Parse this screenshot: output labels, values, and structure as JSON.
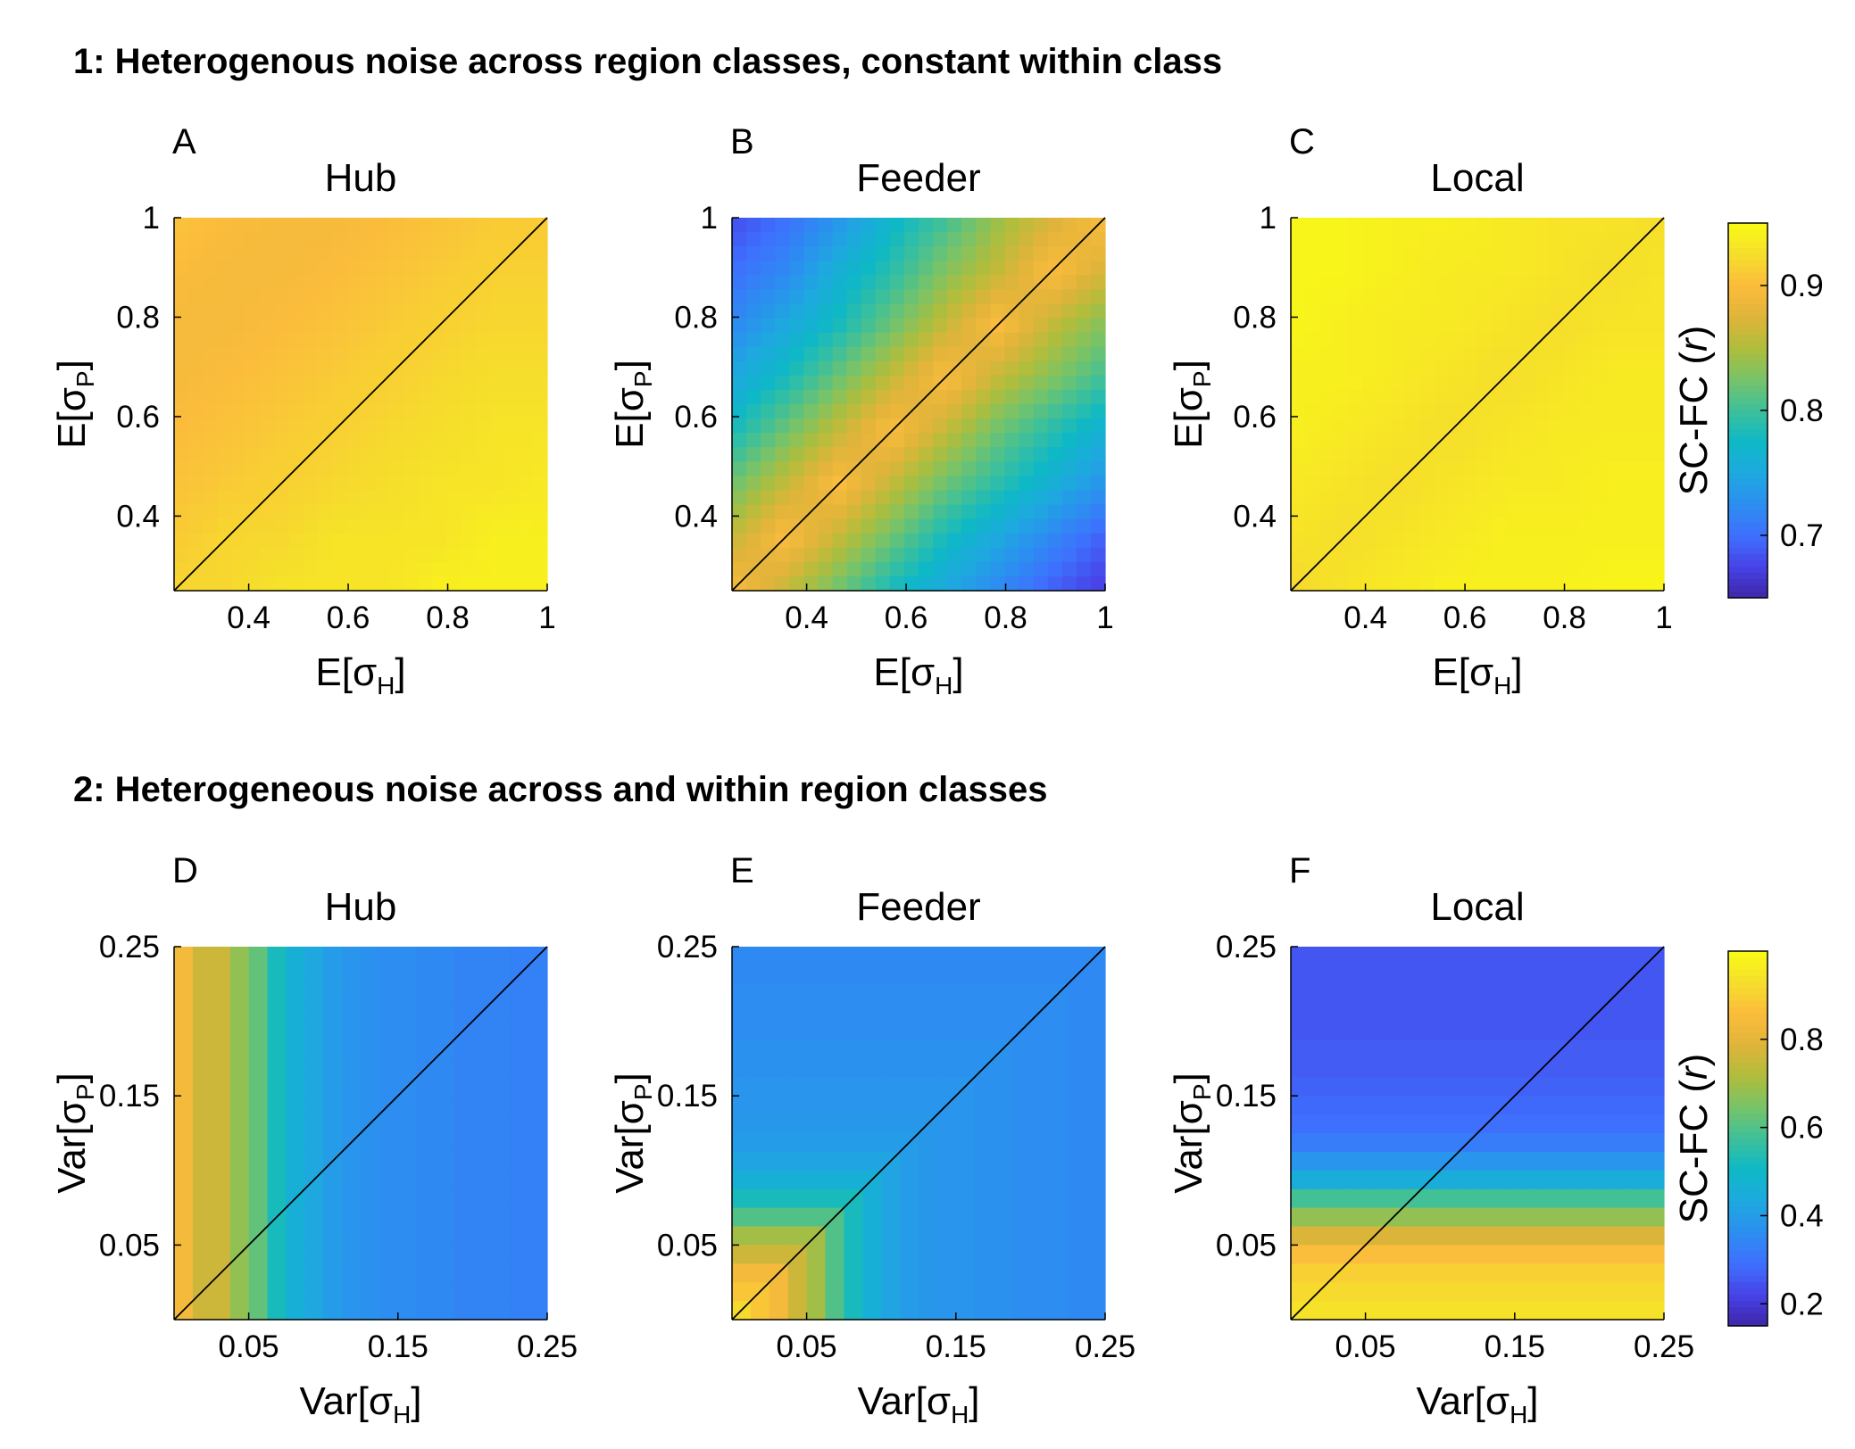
{
  "sections": [
    {
      "title": "1: Heterogenous noise across region classes, constant within class"
    },
    {
      "title": "2: Heterogeneous noise across and within region classes"
    }
  ],
  "labels": {
    "row1_x": {
      "main": "E[",
      "sym": "σ",
      "sub": "H",
      "close": "]"
    },
    "row1_y": {
      "main": "E[",
      "sym": "σ",
      "sub": "P",
      "close": "]"
    },
    "row2_x": {
      "main": "Var[",
      "sym": "σ",
      "sub": "H",
      "close": "]"
    },
    "row2_y": {
      "main": "Var[",
      "sym": "σ",
      "sub": "P",
      "close": "]"
    },
    "cbar": {
      "main": "SC-FC (",
      "italic": "r",
      "close": ")"
    }
  },
  "colors": {
    "colormap": [
      "#3e26a8",
      "#4743e8",
      "#3e70fd",
      "#2c8ef0",
      "#1ea9df",
      "#0eb8c6",
      "#3ec09a",
      "#78c368",
      "#b0bd3c",
      "#e0b43a",
      "#fbbc3c",
      "#f6de2c",
      "#f9fb15"
    ],
    "diagonal": "#000000"
  },
  "chart_data": [
    {
      "type": "heatmap",
      "letter": "A",
      "title": "Hub",
      "row": 1,
      "x_range": [
        0.25,
        1
      ],
      "y_range": [
        0.25,
        1
      ],
      "x_ticks": [
        {
          "v": 0.4,
          "label": "0.4"
        },
        {
          "v": 0.6,
          "label": "0.6"
        },
        {
          "v": 0.8,
          "label": "0.8"
        },
        {
          "v": 1,
          "label": "1"
        }
      ],
      "y_ticks": [
        {
          "v": 0.4,
          "label": "0.4"
        },
        {
          "v": 0.6,
          "label": "0.6"
        },
        {
          "v": 0.8,
          "label": "0.8"
        },
        {
          "v": 1,
          "label": "1"
        }
      ],
      "diagonal": true,
      "color_range": [
        0.65,
        0.95
      ],
      "grid": [
        [
          0.92,
          0.92,
          0.93,
          0.93,
          0.93,
          0.94,
          0.94,
          0.94
        ],
        [
          0.91,
          0.92,
          0.92,
          0.93,
          0.93,
          0.93,
          0.94,
          0.94
        ],
        [
          0.905,
          0.91,
          0.915,
          0.92,
          0.925,
          0.93,
          0.93,
          0.935
        ],
        [
          0.9,
          0.905,
          0.91,
          0.915,
          0.92,
          0.925,
          0.93,
          0.93
        ],
        [
          0.895,
          0.9,
          0.905,
          0.91,
          0.915,
          0.92,
          0.925,
          0.925
        ],
        [
          0.895,
          0.895,
          0.9,
          0.905,
          0.91,
          0.915,
          0.92,
          0.92
        ],
        [
          0.9,
          0.895,
          0.895,
          0.9,
          0.905,
          0.91,
          0.915,
          0.915
        ],
        [
          0.905,
          0.9,
          0.895,
          0.895,
          0.9,
          0.905,
          0.91,
          0.91
        ]
      ]
    },
    {
      "type": "heatmap",
      "letter": "B",
      "title": "Feeder",
      "row": 1,
      "x_range": [
        0.25,
        1
      ],
      "y_range": [
        0.25,
        1
      ],
      "x_ticks": [
        {
          "v": 0.4,
          "label": "0.4"
        },
        {
          "v": 0.6,
          "label": "0.6"
        },
        {
          "v": 0.8,
          "label": "0.8"
        },
        {
          "v": 1,
          "label": "1"
        }
      ],
      "y_ticks": [
        {
          "v": 0.4,
          "label": "0.4"
        },
        {
          "v": 0.6,
          "label": "0.6"
        },
        {
          "v": 0.8,
          "label": "0.8"
        },
        {
          "v": 1,
          "label": "1"
        }
      ],
      "diagonal": true,
      "color_range": [
        0.65,
        0.95
      ],
      "grid": [
        [
          0.9,
          0.86,
          0.82,
          0.78,
          0.75,
          0.72,
          0.69,
          0.67
        ],
        [
          0.86,
          0.9,
          0.86,
          0.82,
          0.78,
          0.75,
          0.72,
          0.69
        ],
        [
          0.82,
          0.86,
          0.9,
          0.86,
          0.82,
          0.79,
          0.76,
          0.73
        ],
        [
          0.78,
          0.82,
          0.86,
          0.9,
          0.86,
          0.82,
          0.79,
          0.76
        ],
        [
          0.75,
          0.78,
          0.82,
          0.86,
          0.9,
          0.86,
          0.83,
          0.8
        ],
        [
          0.72,
          0.75,
          0.78,
          0.82,
          0.86,
          0.9,
          0.86,
          0.83
        ],
        [
          0.7,
          0.72,
          0.76,
          0.79,
          0.83,
          0.86,
          0.9,
          0.87
        ],
        [
          0.68,
          0.7,
          0.73,
          0.77,
          0.8,
          0.84,
          0.87,
          0.9
        ]
      ]
    },
    {
      "type": "heatmap",
      "letter": "C",
      "title": "Local",
      "row": 1,
      "x_range": [
        0.25,
        1
      ],
      "y_range": [
        0.25,
        1
      ],
      "x_ticks": [
        {
          "v": 0.4,
          "label": "0.4"
        },
        {
          "v": 0.6,
          "label": "0.6"
        },
        {
          "v": 0.8,
          "label": "0.8"
        },
        {
          "v": 1,
          "label": "1"
        }
      ],
      "y_ticks": [
        {
          "v": 0.4,
          "label": "0.4"
        },
        {
          "v": 0.6,
          "label": "0.6"
        },
        {
          "v": 0.8,
          "label": "0.8"
        },
        {
          "v": 1,
          "label": "1"
        }
      ],
      "diagonal": true,
      "color_range": [
        0.65,
        0.95
      ],
      "grid": [
        [
          0.92,
          0.93,
          0.935,
          0.94,
          0.94,
          0.94,
          0.945,
          0.945
        ],
        [
          0.93,
          0.925,
          0.93,
          0.935,
          0.94,
          0.94,
          0.94,
          0.94
        ],
        [
          0.935,
          0.93,
          0.925,
          0.93,
          0.935,
          0.935,
          0.94,
          0.94
        ],
        [
          0.94,
          0.935,
          0.93,
          0.925,
          0.93,
          0.935,
          0.935,
          0.935
        ],
        [
          0.94,
          0.94,
          0.935,
          0.93,
          0.925,
          0.93,
          0.935,
          0.935
        ],
        [
          0.945,
          0.94,
          0.935,
          0.935,
          0.93,
          0.925,
          0.93,
          0.93
        ],
        [
          0.945,
          0.945,
          0.94,
          0.935,
          0.935,
          0.93,
          0.925,
          0.93
        ],
        [
          0.945,
          0.945,
          0.94,
          0.94,
          0.935,
          0.93,
          0.93,
          0.925
        ]
      ]
    },
    {
      "type": "heatmap",
      "letter": "D",
      "title": "Hub",
      "row": 2,
      "x_range": [
        0,
        0.25
      ],
      "y_range": [
        0,
        0.25
      ],
      "x_ticks": [
        {
          "v": 0.05,
          "label": "0.05"
        },
        {
          "v": 0.15,
          "label": "0.15"
        },
        {
          "v": 0.25,
          "label": "0.25"
        }
      ],
      "y_ticks": [
        {
          "v": 0.05,
          "label": "0.05"
        },
        {
          "v": 0.15,
          "label": "0.15"
        },
        {
          "v": 0.25,
          "label": "0.25"
        }
      ],
      "diagonal": true,
      "color_range": [
        0.15,
        1.0
      ],
      "column_values": [
        0.84,
        0.76,
        0.76,
        0.68,
        0.62,
        0.52,
        0.46,
        0.43,
        0.4,
        0.38,
        0.37,
        0.36,
        0.36,
        0.35,
        0.35,
        0.34,
        0.34,
        0.34,
        0.33,
        0.33
      ]
    },
    {
      "type": "heatmap",
      "letter": "E",
      "title": "Feeder",
      "row": 2,
      "x_range": [
        0,
        0.25
      ],
      "y_range": [
        0,
        0.25
      ],
      "x_ticks": [
        {
          "v": 0.05,
          "label": "0.05"
        },
        {
          "v": 0.15,
          "label": "0.15"
        },
        {
          "v": 0.25,
          "label": "0.25"
        }
      ],
      "y_ticks": [
        {
          "v": 0.05,
          "label": "0.05"
        },
        {
          "v": 0.15,
          "label": "0.15"
        },
        {
          "v": 0.25,
          "label": "0.25"
        }
      ],
      "diagonal": true,
      "color_range": [
        0.15,
        1.0
      ],
      "column_values": [
        0.92,
        0.88,
        0.84,
        0.76,
        0.7,
        0.6,
        0.52,
        0.46,
        0.42,
        0.4,
        0.39,
        0.38,
        0.38,
        0.37,
        0.37,
        0.36,
        0.36,
        0.36,
        0.35,
        0.35
      ],
      "row_values": [
        0.92,
        0.88,
        0.84,
        0.76,
        0.7,
        0.6,
        0.52,
        0.46,
        0.42,
        0.4,
        0.39,
        0.38,
        0.38,
        0.37,
        0.37,
        0.36,
        0.36,
        0.36,
        0.35,
        0.35
      ]
    },
    {
      "type": "heatmap",
      "letter": "F",
      "title": "Local",
      "row": 2,
      "x_range": [
        0,
        0.25
      ],
      "y_range": [
        0,
        0.25
      ],
      "x_ticks": [
        {
          "v": 0.05,
          "label": "0.05"
        },
        {
          "v": 0.15,
          "label": "0.15"
        },
        {
          "v": 0.25,
          "label": "0.25"
        }
      ],
      "y_ticks": [
        {
          "v": 0.05,
          "label": "0.05"
        },
        {
          "v": 0.15,
          "label": "0.15"
        },
        {
          "v": 0.25,
          "label": "0.25"
        }
      ],
      "diagonal": true,
      "color_range": [
        0.15,
        1.0
      ],
      "row_values": [
        0.94,
        0.92,
        0.9,
        0.86,
        0.78,
        0.68,
        0.58,
        0.45,
        0.38,
        0.32,
        0.29,
        0.28,
        0.27,
        0.26,
        0.26,
        0.25,
        0.25,
        0.25,
        0.25,
        0.25
      ]
    }
  ],
  "colorbars": [
    {
      "row": 1,
      "range": [
        0.65,
        0.95
      ],
      "ticks": [
        {
          "v": 0.7,
          "label": "0.7"
        },
        {
          "v": 0.8,
          "label": "0.8"
        },
        {
          "v": 0.9,
          "label": "0.9"
        }
      ]
    },
    {
      "row": 2,
      "range": [
        0.15,
        1.0
      ],
      "ticks": [
        {
          "v": 0.2,
          "label": "0.2"
        },
        {
          "v": 0.4,
          "label": "0.4"
        },
        {
          "v": 0.6,
          "label": "0.6"
        },
        {
          "v": 0.8,
          "label": "0.8"
        }
      ]
    }
  ]
}
